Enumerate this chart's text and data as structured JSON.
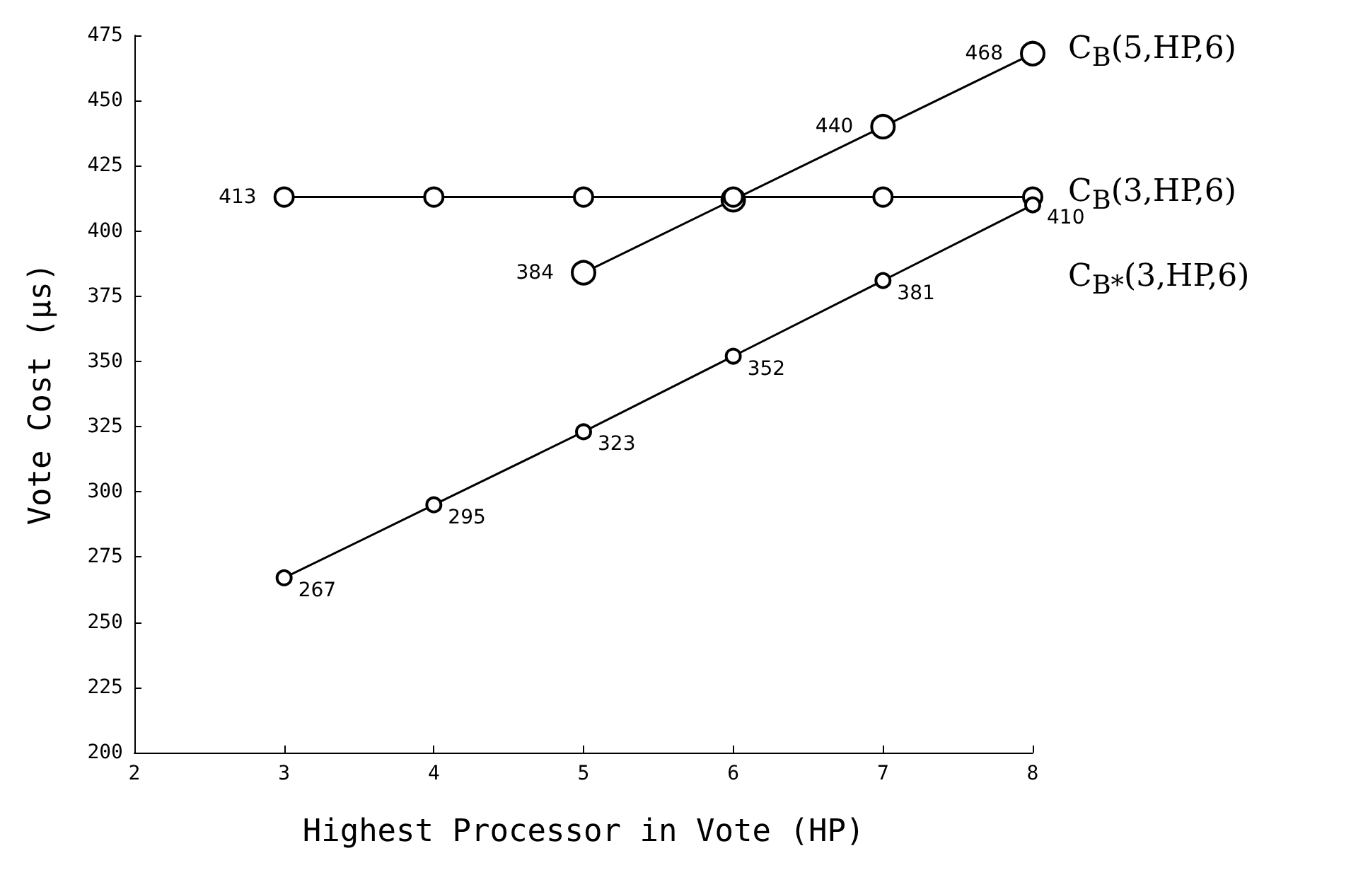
{
  "chart_data": {
    "type": "line",
    "xlabel": "Highest Processor in Vote (HP)",
    "ylabel": "Vote Cost (µs)",
    "xlim": [
      2,
      8
    ],
    "xticks": [
      2,
      3,
      4,
      5,
      6,
      7,
      8
    ],
    "ylim": [
      200,
      475
    ],
    "yticks": [
      200,
      225,
      250,
      275,
      300,
      325,
      350,
      375,
      400,
      425,
      450,
      475
    ],
    "grid": false,
    "marker": "circle",
    "line_style": "solid",
    "series": [
      {
        "name": "C$_{B}$(5,HP,6)",
        "color": "#000000",
        "x": [
          5,
          6,
          7,
          8
        ],
        "values": [
          384,
          412,
          440,
          468
        ],
        "value_labels": [
          "384",
          null,
          "440",
          "468"
        ]
      },
      {
        "name": "C$_{B}$(3,HP,6)",
        "color": "#000000",
        "x": [
          3,
          4,
          5,
          6,
          7,
          8
        ],
        "values": [
          413,
          413,
          413,
          413,
          413,
          413
        ],
        "value_labels": [
          "413",
          null,
          null,
          null,
          null,
          null
        ]
      },
      {
        "name": "C$_{B*}$(3,HP,6)",
        "color": "#000000",
        "x": [
          3,
          4,
          5,
          6,
          7,
          8
        ],
        "values": [
          267,
          295,
          323,
          352,
          381,
          410
        ],
        "value_labels": [
          "267",
          "295",
          "323",
          "352",
          "381",
          "410"
        ]
      }
    ]
  }
}
